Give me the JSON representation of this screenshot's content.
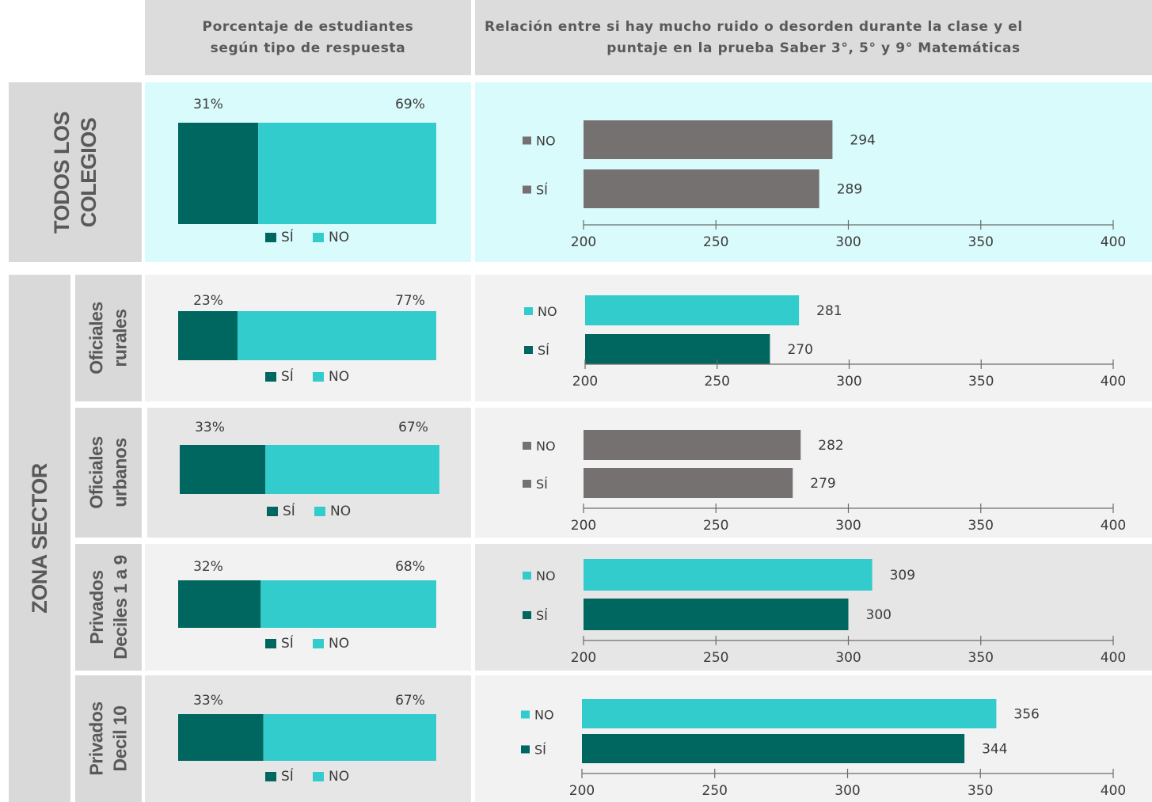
{
  "header": {
    "left_title": "Porcentaje de estudiantes según tipo de respuesta",
    "left_line1": "Porcentaje de estudiantes",
    "left_line2": "según tipo de respuesta",
    "right_title": "Relación entre si hay mucho ruido o desorden durante la clase y el puntaje en la prueba Saber 3°, 5° y 9° Matemáticas",
    "right_line1": "Relación entre si hay mucho ruido o desorden durante la clase y el",
    "right_line2": "puntaje en la prueba Saber 3°, 5° y 9° Matemáticas"
  },
  "groups": {
    "all": {
      "line1": "TODOS LOS",
      "line2": "COLEGIOS"
    },
    "zona": {
      "label": "ZONA SECTOR"
    }
  },
  "legend": {
    "si": "SÍ",
    "no": "NO"
  },
  "colors": {
    "si_dark": "#006660",
    "no_teal": "#33CCCC",
    "gray_bar": "#767171",
    "highlight_bg": "#DAFBFC",
    "panel_gray": "#E7E6E6",
    "panel_light": "#F2F2F2",
    "header_gray": "#DCDCDC"
  },
  "chart_data": [
    {
      "row": "TODOS LOS COLEGIOS",
      "type": "bar",
      "orientation": "stacked-horizontal",
      "categories": [
        "SÍ",
        "NO"
      ],
      "values": [
        31,
        69
      ],
      "labels": [
        "31%",
        "69%"
      ]
    },
    {
      "row": "TODOS LOS COLEGIOS",
      "type": "bar",
      "orientation": "horizontal",
      "categories": [
        "NO",
        "SÍ"
      ],
      "values": [
        294,
        289
      ],
      "xlim": [
        200,
        400
      ],
      "ticks": [
        200,
        250,
        300,
        350,
        400
      ]
    },
    {
      "row": "Oficiales rurales",
      "type": "bar",
      "orientation": "stacked-horizontal",
      "categories": [
        "SÍ",
        "NO"
      ],
      "values": [
        23,
        77
      ],
      "labels": [
        "23%",
        "77%"
      ]
    },
    {
      "row": "Oficiales rurales",
      "type": "bar",
      "orientation": "horizontal",
      "categories": [
        "NO",
        "SÍ"
      ],
      "values": [
        281,
        270
      ],
      "xlim": [
        200,
        400
      ],
      "ticks": [
        200,
        250,
        300,
        350,
        400
      ]
    },
    {
      "row": "Oficiales urbanos",
      "type": "bar",
      "orientation": "stacked-horizontal",
      "categories": [
        "SÍ",
        "NO"
      ],
      "values": [
        33,
        67
      ],
      "labels": [
        "33%",
        "67%"
      ]
    },
    {
      "row": "Oficiales urbanos",
      "type": "bar",
      "orientation": "horizontal",
      "categories": [
        "NO",
        "SÍ"
      ],
      "values": [
        282,
        279
      ],
      "xlim": [
        200,
        400
      ],
      "ticks": [
        200,
        250,
        300,
        350,
        400
      ]
    },
    {
      "row": "Privados Deciles 1 a 9",
      "type": "bar",
      "orientation": "stacked-horizontal",
      "categories": [
        "SÍ",
        "NO"
      ],
      "values": [
        32,
        68
      ],
      "labels": [
        "32%",
        "68%"
      ]
    },
    {
      "row": "Privados Deciles 1 a 9",
      "type": "bar",
      "orientation": "horizontal",
      "categories": [
        "NO",
        "SÍ"
      ],
      "values": [
        309,
        300
      ],
      "xlim": [
        200,
        400
      ],
      "ticks": [
        200,
        250,
        300,
        350,
        400
      ]
    },
    {
      "row": "Privados Decil 10",
      "type": "bar",
      "orientation": "stacked-horizontal",
      "categories": [
        "SÍ",
        "NO"
      ],
      "values": [
        33,
        67
      ],
      "labels": [
        "33%",
        "67%"
      ]
    },
    {
      "row": "Privados Decil 10",
      "type": "bar",
      "orientation": "horizontal",
      "categories": [
        "NO",
        "SÍ"
      ],
      "values": [
        356,
        344
      ],
      "xlim": [
        200,
        400
      ],
      "ticks": [
        200,
        250,
        300,
        350,
        400
      ]
    }
  ],
  "subgroups": [
    {
      "line1": "Oficiales",
      "line2": "rurales"
    },
    {
      "line1": "Oficiales",
      "line2": "urbanos"
    },
    {
      "line1": "Privados",
      "line2": "Deciles 1 a 9"
    },
    {
      "line1": "Privados",
      "line2": "Decil 10"
    }
  ]
}
